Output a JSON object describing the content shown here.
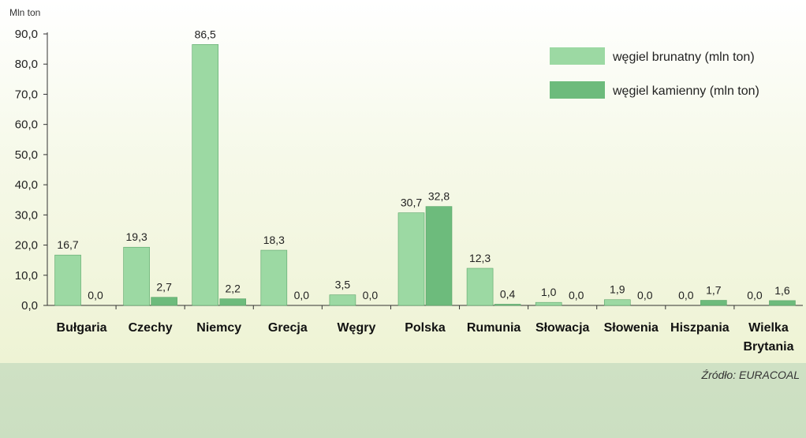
{
  "chart_data": {
    "type": "bar",
    "ylabel": "Mln ton",
    "ylim": [
      0,
      90
    ],
    "yticks": [
      "0,0",
      "10,0",
      "20,0",
      "30,0",
      "40,0",
      "50,0",
      "60,0",
      "70,0",
      "80,0",
      "90,0"
    ],
    "categories": [
      [
        "Bułgaria"
      ],
      [
        "Czechy"
      ],
      [
        "Niemcy"
      ],
      [
        "Grecja"
      ],
      [
        "Węgry"
      ],
      [
        "Polska"
      ],
      [
        "Rumunia"
      ],
      [
        "Słowacja"
      ],
      [
        "Słowenia"
      ],
      [
        "Hiszpania"
      ],
      [
        "Wielka",
        "Brytania"
      ]
    ],
    "series": [
      {
        "name": "węgiel brunatny (mln ton)",
        "color": "#9cd9a3",
        "values": [
          16.7,
          19.3,
          86.5,
          18.3,
          3.5,
          30.7,
          12.3,
          1.0,
          1.9,
          0.0,
          0.0
        ],
        "labels": [
          "16,7",
          "19,3",
          "86,5",
          "18,3",
          "3,5",
          "30,7",
          "12,3",
          "1,0",
          "1,9",
          "0,0",
          "0,0"
        ]
      },
      {
        "name": "węgiel kamienny (mln ton)",
        "color": "#6dbb7c",
        "values": [
          0.0,
          2.7,
          2.2,
          0.0,
          0.0,
          32.8,
          0.4,
          0.0,
          0.0,
          1.7,
          1.6
        ],
        "labels": [
          "0,0",
          "2,7",
          "2,2",
          "0,0",
          "0,0",
          "32,8",
          "0,4",
          "0,0",
          "0,0",
          "1,7",
          "1,6"
        ]
      }
    ],
    "legend_position": "top-right",
    "grid": false,
    "source": "Źródło: EURACOAL"
  }
}
